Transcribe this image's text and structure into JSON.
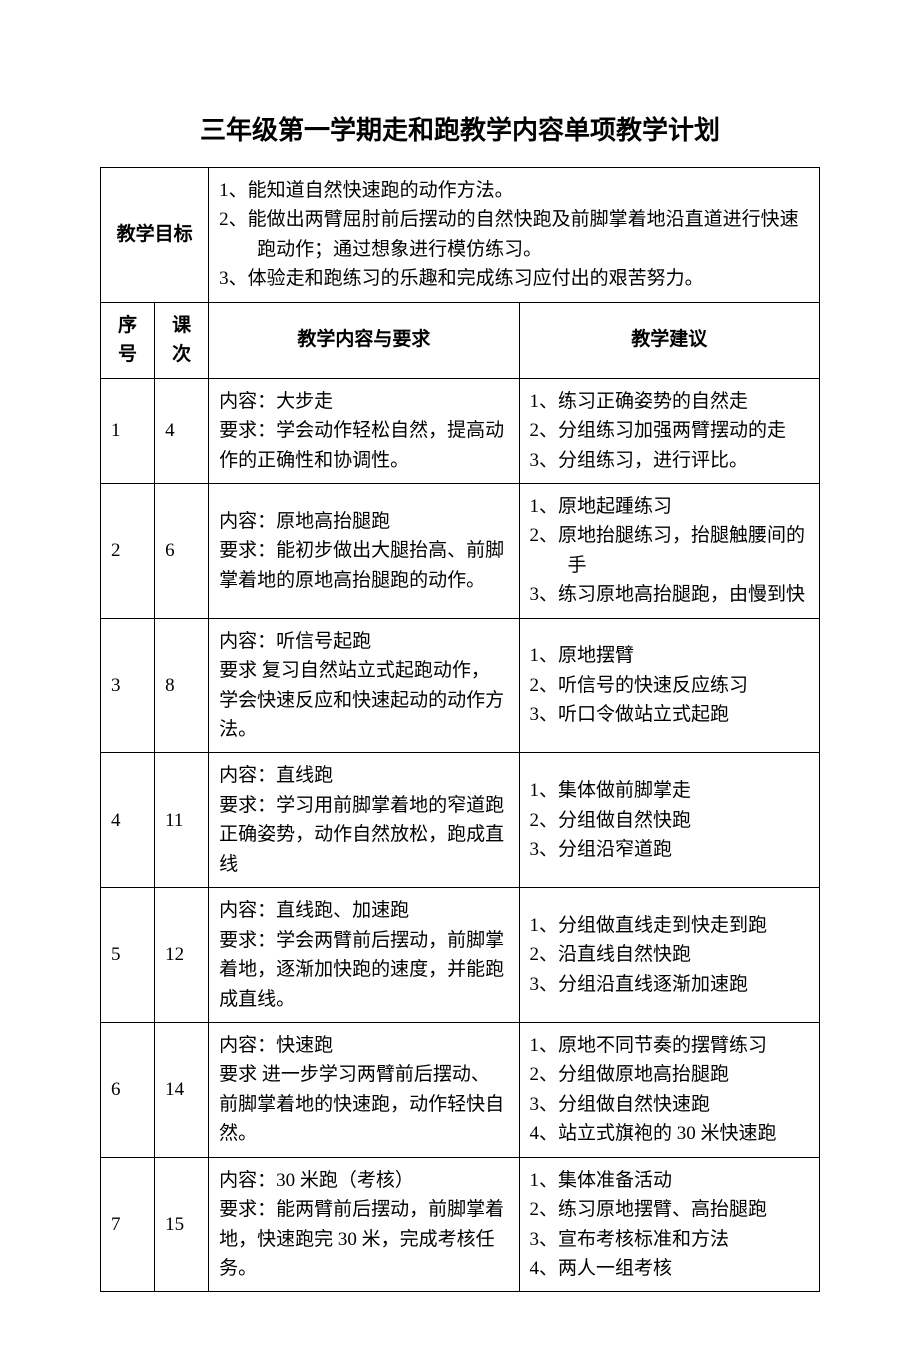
{
  "title": "三年级第一学期走和跑教学内容单项教学计划",
  "labels": {
    "objectives": "教学目标",
    "seq": "序号",
    "lesson": "课次",
    "content": "教学内容与要求",
    "suggest": "教学建议"
  },
  "objectives": [
    "1、能知道自然快速跑的动作方法。",
    "2、能做出两臂屈肘前后摆动的自然快跑及前脚掌着地沿直道进行快速跑动作；通过想象进行模仿练习。",
    "3、体验走和跑练习的乐趣和完成练习应付出的艰苦努力。"
  ],
  "rows": [
    {
      "seq": "1",
      "lesson": "4",
      "content_title": "内容：大步走",
      "content_req": "要求：学会动作轻松自然，提高动作的正确性和协调性。",
      "suggestions": [
        "1、练习正确姿势的自然走",
        "2、分组练习加强两臂摆动的走",
        "3、分组练习，进行评比。"
      ]
    },
    {
      "seq": "2",
      "lesson": "6",
      "content_title": "内容：原地高抬腿跑",
      "content_req": "要求：能初步做出大腿抬高、前脚掌着地的原地高抬腿跑的动作。",
      "suggestions": [
        "1、原地起踵练习",
        "2、原地抬腿练习，抬腿触腰间的手",
        "3、练习原地高抬腿跑，由慢到快"
      ]
    },
    {
      "seq": "3",
      "lesson": "8",
      "content_title": "内容：听信号起跑",
      "content_req": "要求 复习自然站立式起跑动作，学会快速反应和快速起动的动作方法。",
      "suggestions": [
        "1、原地摆臂",
        "2、听信号的快速反应练习",
        "3、听口令做站立式起跑"
      ]
    },
    {
      "seq": "4",
      "lesson": "11",
      "content_title": "内容：直线跑",
      "content_req": "要求：学习用前脚掌着地的窄道跑正确姿势，动作自然放松，跑成直线",
      "suggestions": [
        "1、集体做前脚掌走",
        "2、分组做自然快跑",
        "3、分组沿窄道跑"
      ]
    },
    {
      "seq": "5",
      "lesson": "12",
      "content_title": "内容：直线跑、加速跑",
      "content_req": "要求：学会两臂前后摆动，前脚掌着地，逐渐加快跑的速度，并能跑成直线。",
      "suggestions": [
        "1、分组做直线走到快走到跑",
        "2、沿直线自然快跑",
        "3、分组沿直线逐渐加速跑"
      ]
    },
    {
      "seq": "6",
      "lesson": "14",
      "content_title": "内容：快速跑",
      "content_req": "要求 进一步学习两臂前后摆动、前脚掌着地的快速跑，动作轻快自然。",
      "suggestions": [
        "1、原地不同节奏的摆臂练习",
        "2、分组做原地高抬腿跑",
        "3、分组做自然快速跑",
        "4、站立式旗袍的 30 米快速跑"
      ]
    },
    {
      "seq": "7",
      "lesson": "15",
      "content_title": "内容：30 米跑（考核）",
      "content_req": "要求：能两臂前后摆动，前脚掌着地，快速跑完 30 米，完成考核任务。",
      "suggestions": [
        "1、集体准备活动",
        "2、练习原地摆臂、高抬腿跑",
        "3、宣布考核标准和方法",
        "4、两人一组考核"
      ],
      "tall": true
    }
  ]
}
